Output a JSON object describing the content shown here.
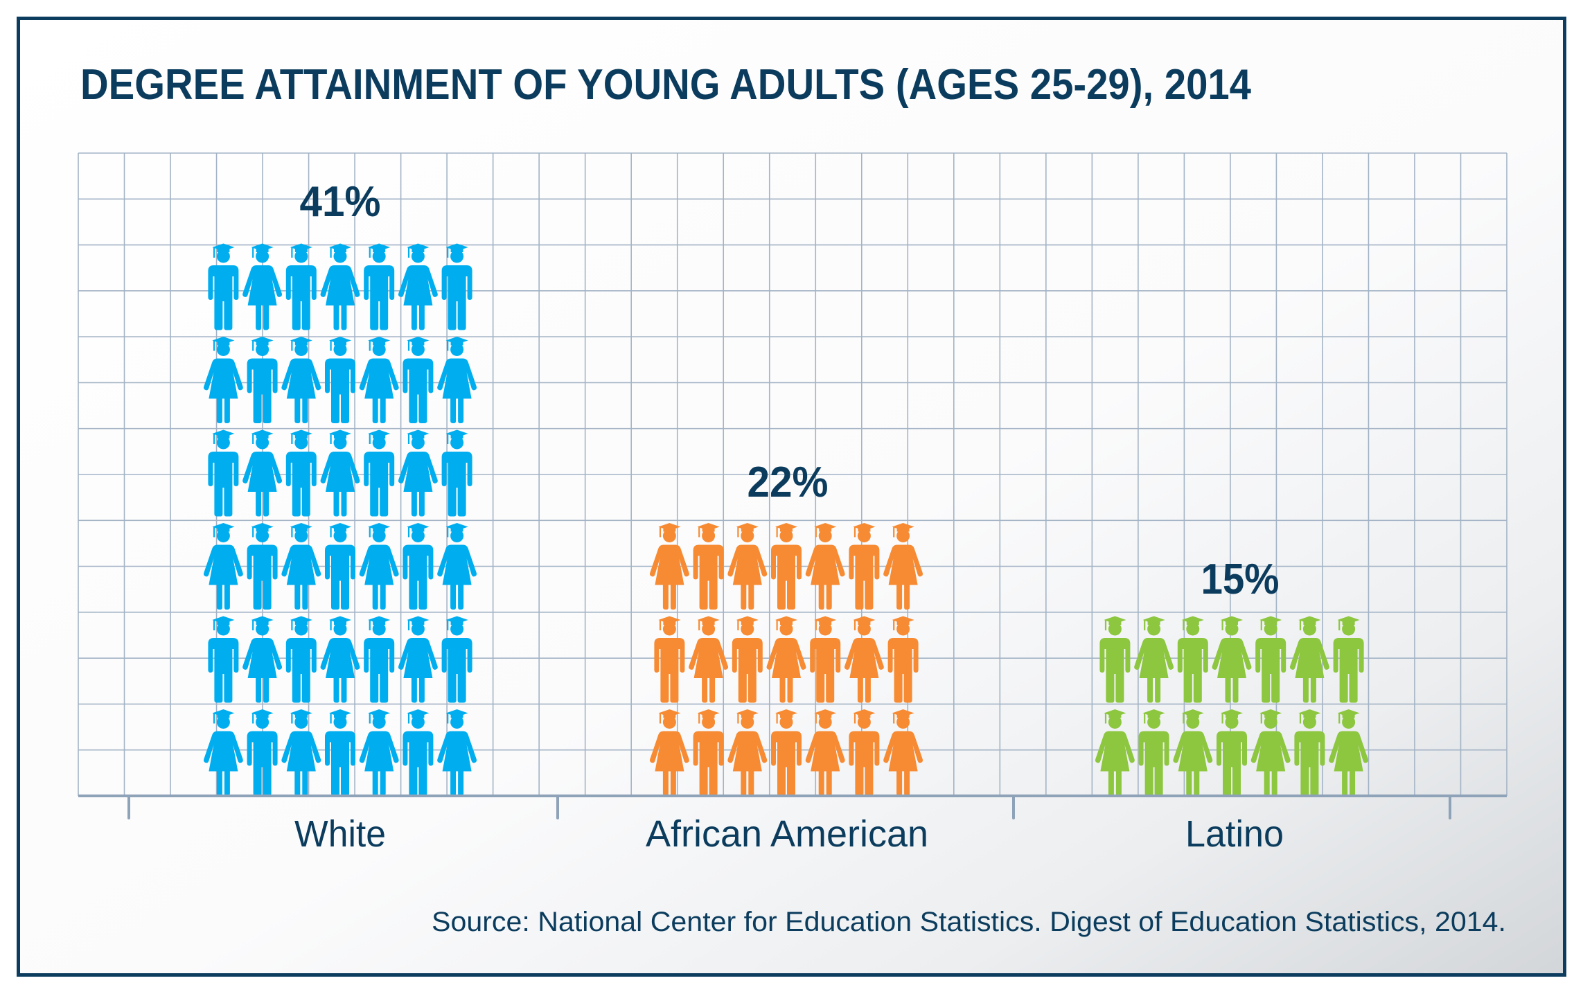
{
  "colors": {
    "navy": "#0b3c5d",
    "border": "#0d3d5e",
    "grid": "#a3b3c5",
    "axis": "#8fa3b8",
    "white_group": "#00aeef",
    "african_american_group": "#f68b33",
    "latino_group": "#8dc63f"
  },
  "icons": {
    "figure_types": [
      "man-graduate-icon",
      "woman-graduate-icon"
    ]
  },
  "chart_data": {
    "type": "bar",
    "subtype": "pictogram",
    "title": "DEGREE ATTAINMENT OF YOUNG ADULTS (AGES 25-29), 2014",
    "xlabel": "",
    "ylabel": "",
    "categories": [
      "White",
      "African American",
      "Latino"
    ],
    "values": [
      41,
      22,
      15
    ],
    "value_labels": [
      "41%",
      "22%",
      "15%"
    ],
    "unit": "%",
    "icons_per_row": 7,
    "icon_rows": [
      6,
      3,
      2
    ],
    "grid": true,
    "legend": "none",
    "source": "Source: National Center for Education Statistics. Digest of Education Statistics, 2014."
  }
}
